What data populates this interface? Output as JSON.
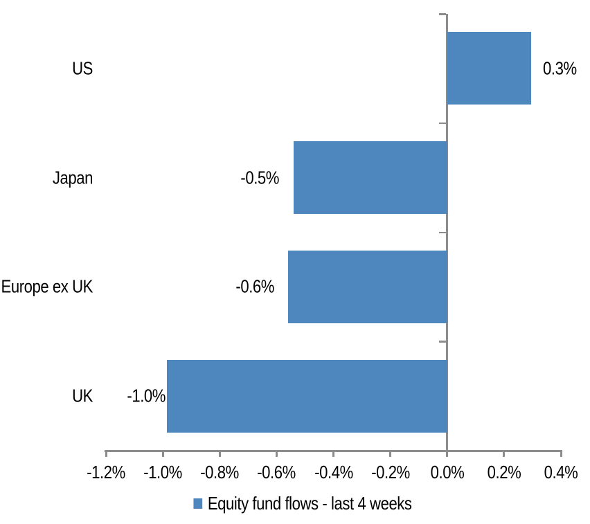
{
  "chart_data": {
    "type": "bar",
    "orientation": "horizontal",
    "title": "",
    "xlabel": "",
    "ylabel": "",
    "categories": [
      "US",
      "Japan",
      "Europe ex UK",
      "UK"
    ],
    "values": [
      0.3,
      -0.5,
      -0.6,
      -1.0
    ],
    "bar_values_precise": [
      0.295,
      -0.54,
      -0.56,
      -0.985
    ],
    "data_labels": [
      "0.3%",
      "-0.5%",
      "-0.6%",
      "-1.0%"
    ],
    "x_axis": {
      "xlim": [
        -1.2,
        0.4
      ],
      "tick_values": [
        -1.2,
        -1.0,
        -0.8,
        -0.6,
        -0.4,
        -0.2,
        0.0,
        0.2,
        0.4
      ],
      "tick_labels": [
        "-1.2%",
        "-1.0%",
        "-0.8%",
        "-0.6%",
        "-0.4%",
        "-0.2%",
        "0.0%",
        "0.2%",
        "0.4%"
      ]
    },
    "grid": false,
    "legend": {
      "label": "Equity fund flows - last 4 weeks",
      "position": "bottom",
      "marker_color": "#4E87BE"
    },
    "colors": {
      "bar": "#4E87BE",
      "axis": "#8C8C8C",
      "text": "#000000",
      "background": "#FFFFFF"
    }
  }
}
